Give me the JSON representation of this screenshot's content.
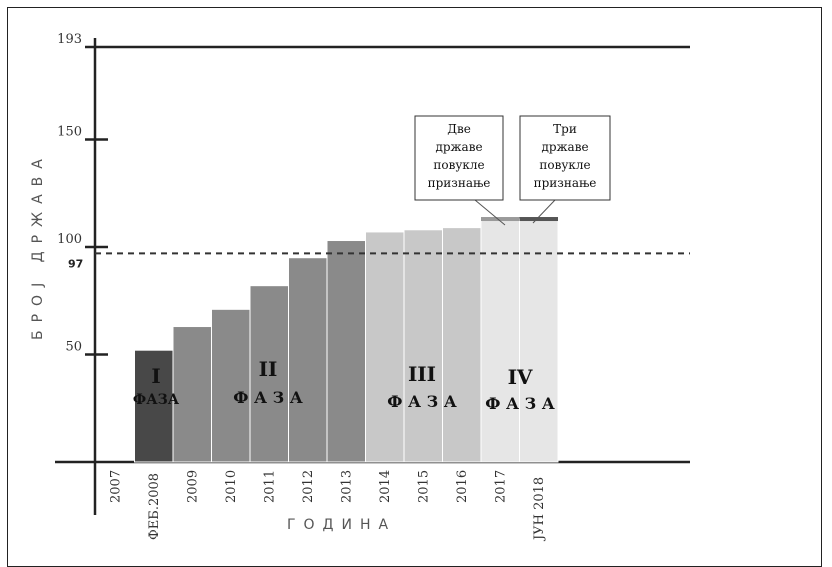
{
  "chart_data": {
    "type": "bar",
    "categories": [
      "2007",
      "ФЕБ.2008",
      "2009",
      "2010",
      "2011",
      "2012",
      "2013",
      "2014",
      "2015",
      "2016",
      "2017",
      "ЈУН 2018"
    ],
    "values": [
      0,
      52,
      63,
      71,
      82,
      95,
      103,
      107,
      108,
      109,
      113,
      113
    ],
    "bar_colors": [
      "#ffffff",
      "#484848",
      "#8a8a8a",
      "#8a8a8a",
      "#8a8a8a",
      "#8a8a8a",
      "#8a8a8a",
      "#c8c8c8",
      "#c8c8c8",
      "#c8c8c8",
      "#e6e6e6",
      "#e6e6e6"
    ],
    "cap_colors": [
      "",
      "",
      "",
      "",
      "",
      "",
      "",
      "",
      "",
      "",
      "#9a9a9a",
      "#555555"
    ],
    "yticks": [
      50,
      100,
      150,
      193
    ],
    "reference_line": {
      "value": 97,
      "label": "97"
    },
    "ylim": [
      0,
      193
    ],
    "xlabel": "ГОДИНА",
    "ylabel": "БРОЈ ДРЖАВА",
    "phases": [
      {
        "numeral": "I",
        "word": "ФАЗА"
      },
      {
        "numeral": "II",
        "word": "Ф А З А"
      },
      {
        "numeral": "III",
        "word": "Ф А З А"
      },
      {
        "numeral": "IV",
        "word": "Ф А З А"
      }
    ],
    "callouts": [
      {
        "lines": [
          "Две",
          "државе",
          "повукле",
          "признање"
        ]
      },
      {
        "lines": [
          "Три",
          "државе",
          "повукле",
          "признање"
        ]
      }
    ]
  }
}
